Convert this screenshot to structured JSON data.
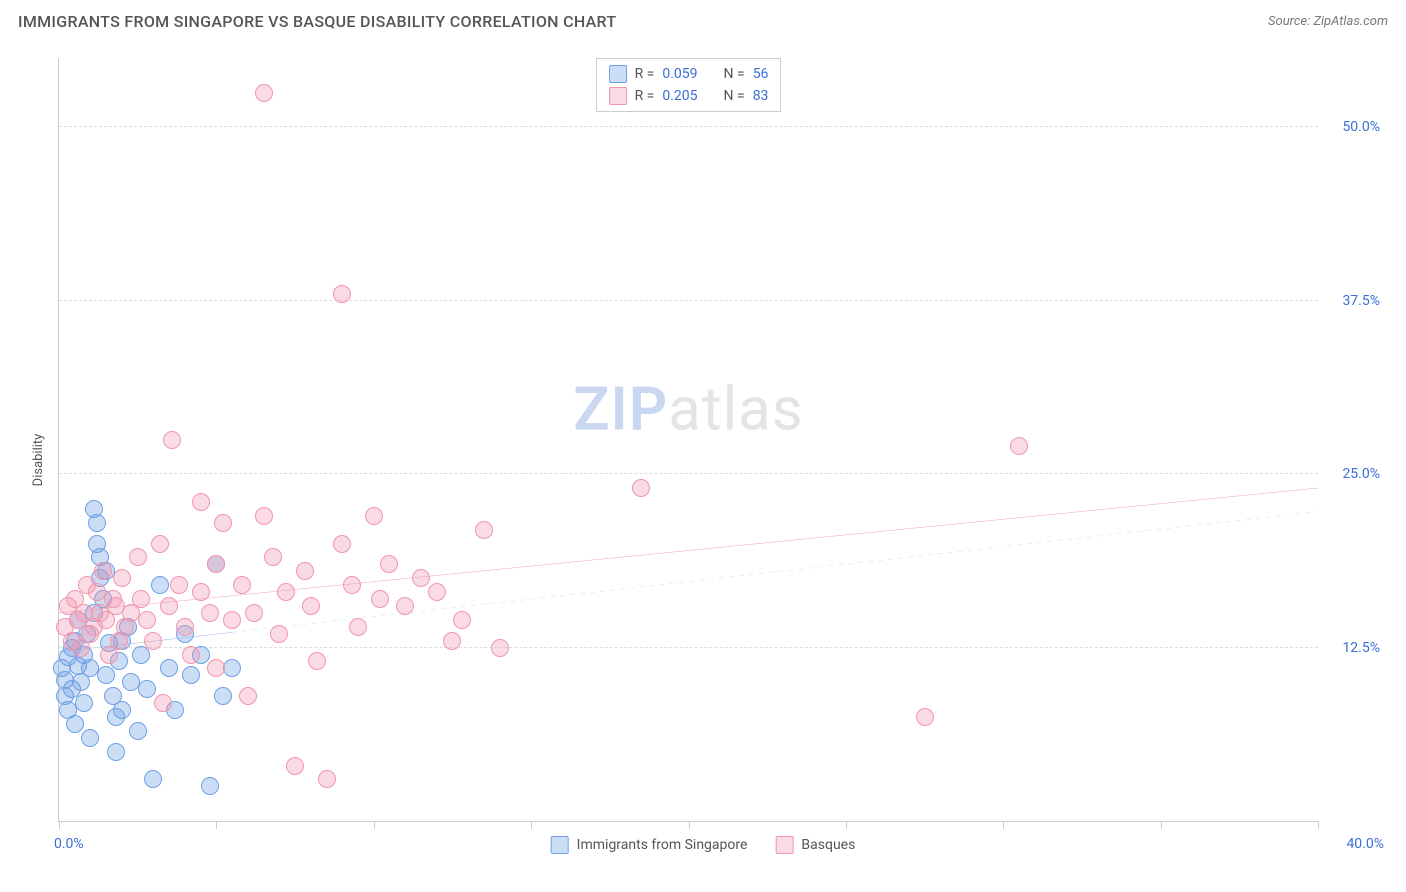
{
  "title": "IMMIGRANTS FROM SINGAPORE VS BASQUE DISABILITY CORRELATION CHART",
  "source_prefix": "Source: ",
  "source": "ZipAtlas.com",
  "ylabel": "Disability",
  "watermark": {
    "part1": "ZIP",
    "part2": "atlas"
  },
  "chart": {
    "type": "scatter",
    "xlim": [
      0,
      40
    ],
    "ylim": [
      0,
      55
    ],
    "x_ticks_minor": [
      0,
      5,
      10,
      15,
      20,
      25,
      30,
      35,
      40
    ],
    "x_tick_labels": {
      "min": "0.0%",
      "max": "40.0%"
    },
    "y_gridlines": [
      12.5,
      25.0,
      37.5,
      50.0
    ],
    "y_tick_labels": [
      "12.5%",
      "25.0%",
      "37.5%",
      "50.0%"
    ],
    "background_color": "#ffffff",
    "grid_color": "#dddddd",
    "axis_color": "#cccccc",
    "tick_label_color": "#3b6fd6",
    "point_radius": 9,
    "series": [
      {
        "name": "Immigrants from Singapore",
        "fill": "rgba(110,160,230,0.35)",
        "stroke": "#6ea0e6",
        "trend": {
          "x1": 0,
          "y1": 12.2,
          "x2": 5.5,
          "y2": 13.6,
          "color": "#2f63c9",
          "width": 2,
          "dash": "none"
        },
        "trend_ext": {
          "x1": 5.5,
          "y1": 13.6,
          "x2": 40,
          "y2": 22.3,
          "color": "#6ea0e6",
          "width": 1.4,
          "dash": "5 5"
        },
        "stats": {
          "R": "0.059",
          "N": "56"
        },
        "points": [
          [
            0.1,
            11.0
          ],
          [
            0.2,
            9.0
          ],
          [
            0.2,
            10.2
          ],
          [
            0.3,
            11.8
          ],
          [
            0.3,
            8.0
          ],
          [
            0.4,
            12.5
          ],
          [
            0.4,
            9.5
          ],
          [
            0.5,
            13.0
          ],
          [
            0.5,
            7.0
          ],
          [
            0.6,
            11.2
          ],
          [
            0.6,
            14.5
          ],
          [
            0.7,
            10.0
          ],
          [
            0.8,
            12.0
          ],
          [
            0.8,
            8.5
          ],
          [
            0.9,
            13.5
          ],
          [
            1.0,
            11.0
          ],
          [
            1.0,
            6.0
          ],
          [
            1.1,
            15.0
          ],
          [
            1.1,
            22.5
          ],
          [
            1.2,
            20.0
          ],
          [
            1.2,
            21.5
          ],
          [
            1.3,
            17.5
          ],
          [
            1.3,
            19.0
          ],
          [
            1.4,
            16.0
          ],
          [
            1.5,
            18.0
          ],
          [
            1.5,
            10.5
          ],
          [
            1.6,
            12.8
          ],
          [
            1.7,
            9.0
          ],
          [
            1.8,
            7.5
          ],
          [
            1.8,
            5.0
          ],
          [
            1.9,
            11.5
          ],
          [
            2.0,
            13.0
          ],
          [
            2.0,
            8.0
          ],
          [
            2.2,
            14.0
          ],
          [
            2.3,
            10.0
          ],
          [
            2.5,
            6.5
          ],
          [
            2.6,
            12.0
          ],
          [
            2.8,
            9.5
          ],
          [
            3.0,
            3.0
          ],
          [
            3.2,
            17.0
          ],
          [
            3.5,
            11.0
          ],
          [
            3.7,
            8.0
          ],
          [
            4.0,
            13.5
          ],
          [
            4.2,
            10.5
          ],
          [
            4.5,
            12.0
          ],
          [
            4.8,
            2.5
          ],
          [
            5.0,
            18.5
          ],
          [
            5.2,
            9.0
          ],
          [
            5.5,
            11.0
          ]
        ]
      },
      {
        "name": "Basques",
        "fill": "rgba(240,150,175,0.35)",
        "stroke": "#f096af",
        "trend": {
          "x1": 0,
          "y1": 15.0,
          "x2": 40,
          "y2": 24.0,
          "color": "#e65f88",
          "width": 2.5,
          "dash": "none"
        },
        "stats": {
          "R": "0.205",
          "N": "83"
        },
        "points": [
          [
            0.2,
            14.0
          ],
          [
            0.3,
            15.5
          ],
          [
            0.4,
            13.0
          ],
          [
            0.5,
            16.0
          ],
          [
            0.6,
            14.5
          ],
          [
            0.7,
            12.5
          ],
          [
            0.8,
            15.0
          ],
          [
            0.9,
            17.0
          ],
          [
            1.0,
            13.5
          ],
          [
            1.1,
            14.0
          ],
          [
            1.2,
            16.5
          ],
          [
            1.3,
            15.0
          ],
          [
            1.4,
            18.0
          ],
          [
            1.5,
            14.5
          ],
          [
            1.6,
            12.0
          ],
          [
            1.7,
            16.0
          ],
          [
            1.8,
            15.5
          ],
          [
            1.9,
            13.0
          ],
          [
            2.0,
            17.5
          ],
          [
            2.1,
            14.0
          ],
          [
            2.3,
            15.0
          ],
          [
            2.5,
            19.0
          ],
          [
            2.6,
            16.0
          ],
          [
            2.8,
            14.5
          ],
          [
            3.0,
            13.0
          ],
          [
            3.2,
            20.0
          ],
          [
            3.3,
            8.5
          ],
          [
            3.5,
            15.5
          ],
          [
            3.6,
            27.5
          ],
          [
            3.8,
            17.0
          ],
          [
            4.0,
            14.0
          ],
          [
            4.2,
            12.0
          ],
          [
            4.5,
            23.0
          ],
          [
            4.5,
            16.5
          ],
          [
            4.8,
            15.0
          ],
          [
            5.0,
            18.5
          ],
          [
            5.0,
            11.0
          ],
          [
            5.2,
            21.5
          ],
          [
            5.5,
            14.5
          ],
          [
            5.8,
            17.0
          ],
          [
            6.0,
            9.0
          ],
          [
            6.2,
            15.0
          ],
          [
            6.5,
            22.0
          ],
          [
            6.5,
            52.5
          ],
          [
            6.8,
            19.0
          ],
          [
            7.0,
            13.5
          ],
          [
            7.2,
            16.5
          ],
          [
            7.5,
            4.0
          ],
          [
            7.8,
            18.0
          ],
          [
            8.0,
            15.5
          ],
          [
            8.2,
            11.5
          ],
          [
            8.5,
            3.0
          ],
          [
            9.0,
            20.0
          ],
          [
            9.0,
            38.0
          ],
          [
            9.3,
            17.0
          ],
          [
            9.5,
            14.0
          ],
          [
            10.0,
            22.0
          ],
          [
            10.2,
            16.0
          ],
          [
            10.5,
            18.5
          ],
          [
            11.0,
            15.5
          ],
          [
            11.5,
            17.5
          ],
          [
            12.0,
            16.5
          ],
          [
            12.5,
            13.0
          ],
          [
            12.8,
            14.5
          ],
          [
            13.5,
            21.0
          ],
          [
            14.0,
            12.5
          ],
          [
            18.5,
            24.0
          ],
          [
            27.5,
            7.5
          ],
          [
            30.5,
            27.0
          ]
        ]
      }
    ]
  },
  "legend": {
    "r_label": "R =",
    "n_label": "N ="
  }
}
